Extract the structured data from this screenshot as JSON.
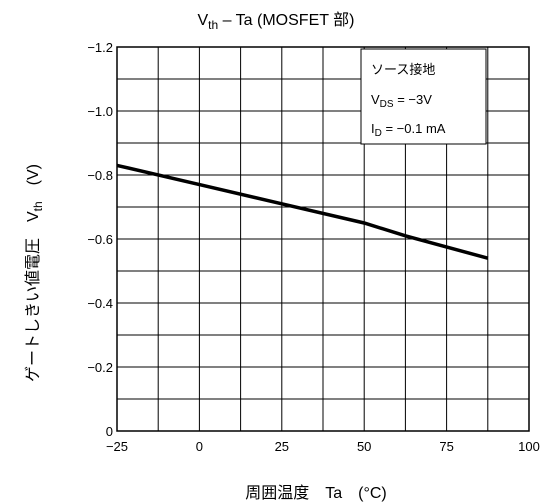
{
  "chart_data": {
    "type": "line",
    "title": {
      "main": "V",
      "sub": "th",
      "rest": " – Ta (MOSFET 部)"
    },
    "xlabel": "周囲温度　Ta　(°C)",
    "ylabel": {
      "main": "ゲートしきい値電圧　V",
      "sub": "th",
      "rest": "　(V)"
    },
    "xlim": [
      -25,
      100
    ],
    "ylim": [
      0,
      -1.2
    ],
    "x_major_ticks": [
      -25,
      0,
      25,
      50,
      75,
      100
    ],
    "x_tick_labels": [
      "−25",
      "0",
      "25",
      "50",
      "75",
      "100"
    ],
    "y_major_ticks": [
      0,
      -0.2,
      -0.4,
      -0.6,
      -0.8,
      -1.0,
      -1.2
    ],
    "y_tick_labels": [
      "0",
      "−0.2",
      "−0.4",
      "−0.6",
      "−0.8",
      "−1.0",
      "−1.2"
    ],
    "grid": true,
    "series": [
      {
        "x": [
          -25,
          0,
          25,
          50,
          62.5,
          87.5
        ],
        "y": [
          -0.83,
          -0.77,
          -0.71,
          -0.65,
          -0.61,
          -0.54
        ]
      }
    ],
    "legend_box": {
      "line1": "ソース接地",
      "line2": {
        "main": "V",
        "sub": "DS",
        "rest": " = −3V"
      },
      "line3": {
        "main": "I",
        "sub": "D",
        "rest": " = −0.1 mA"
      }
    }
  }
}
